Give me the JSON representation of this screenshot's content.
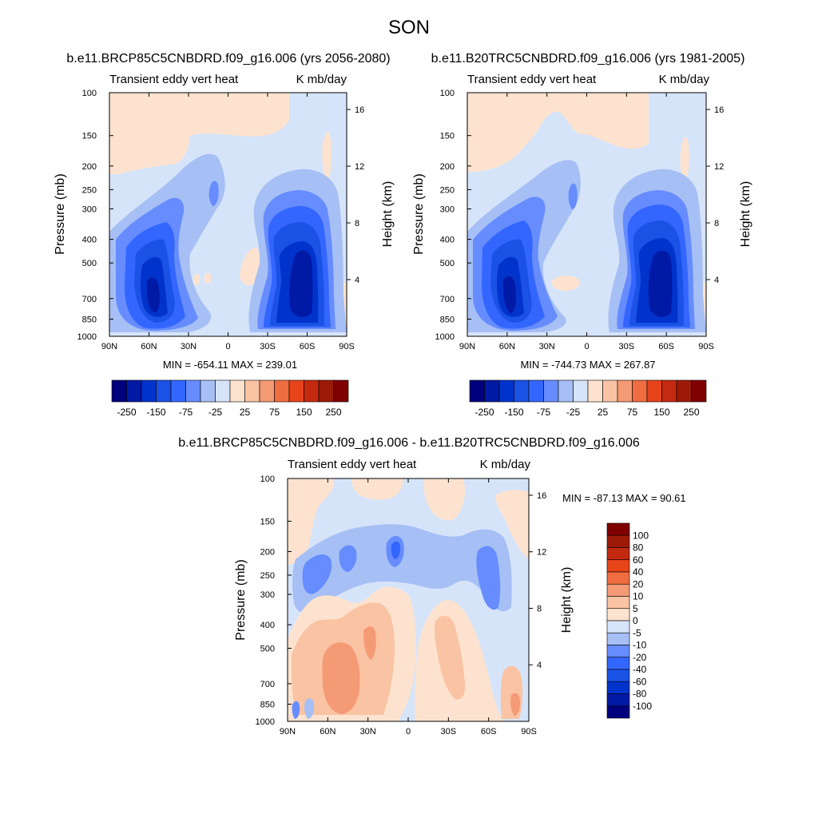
{
  "figure_title": "SON",
  "chart_data": [
    {
      "type": "heatmap",
      "panel": "case",
      "title": "b.e11.BRCP85C5CNBDRD.f09_g16.006 (yrs 2056-2080)",
      "left_label": "Transient eddy vert heat",
      "right_label": "K mb/day",
      "xlabel": "",
      "ylabel": "Pressure (mb)",
      "ylabel_right": "Height (km)",
      "x_ticks": [
        "90N",
        "60N",
        "30N",
        "0",
        "30S",
        "60S",
        "90S"
      ],
      "x_range": [
        90,
        -90
      ],
      "y_ticks": [
        "100",
        "150",
        "200",
        "250",
        "300",
        "400",
        "500",
        "700",
        "850",
        "1000"
      ],
      "y_range": [
        1000,
        100
      ],
      "y_scale": "log",
      "height_ticks": [
        "4",
        "8",
        "12",
        "16"
      ],
      "min": -654.11,
      "max": 239.01,
      "stats_text": "MIN = -654.11  MAX = 239.01",
      "colorbar_labels": [
        "-250",
        "-150",
        "-75",
        "-25",
        "25",
        "75",
        "150",
        "250"
      ]
    },
    {
      "type": "heatmap",
      "panel": "control",
      "title": "b.e11.B20TRC5CNBDRD.f09_g16.006 (yrs 1981-2005)",
      "left_label": "Transient eddy vert heat",
      "right_label": "K mb/day",
      "xlabel": "",
      "ylabel": "Pressure (mb)",
      "ylabel_right": "Height (km)",
      "x_ticks": [
        "90N",
        "60N",
        "30N",
        "0",
        "30S",
        "60S",
        "90S"
      ],
      "x_range": [
        90,
        -90
      ],
      "y_ticks": [
        "100",
        "150",
        "200",
        "250",
        "300",
        "400",
        "500",
        "700",
        "850",
        "1000"
      ],
      "y_range": [
        1000,
        100
      ],
      "y_scale": "log",
      "height_ticks": [
        "4",
        "8",
        "12",
        "16"
      ],
      "min": -744.73,
      "max": 267.87,
      "stats_text": "MIN = -744.73  MAX = 267.87",
      "colorbar_labels": [
        "-250",
        "-150",
        "-75",
        "-25",
        "25",
        "75",
        "150",
        "250"
      ]
    },
    {
      "type": "heatmap",
      "panel": "difference",
      "title": "b.e11.BRCP85C5CNBDRD.f09_g16.006 - b.e11.B20TRC5CNBDRD.f09_g16.006",
      "left_label": "Transient eddy vert heat",
      "right_label": "K mb/day",
      "xlabel": "",
      "ylabel": "Pressure (mb)",
      "ylabel_right": "Height (km)",
      "x_ticks": [
        "90N",
        "60N",
        "30N",
        "0",
        "30S",
        "60S",
        "90S"
      ],
      "x_range": [
        90,
        -90
      ],
      "y_ticks": [
        "100",
        "150",
        "200",
        "250",
        "300",
        "400",
        "500",
        "700",
        "850",
        "1000"
      ],
      "y_range": [
        1000,
        100
      ],
      "y_scale": "log",
      "height_ticks": [
        "4",
        "8",
        "12",
        "16"
      ],
      "min": -87.13,
      "max": 90.61,
      "stats_text": "MIN = -87.13  MAX =  90.61",
      "colorbar_labels": [
        "100",
        "80",
        "60",
        "40",
        "20",
        "10",
        "5",
        "0",
        "-5",
        "-10",
        "-20",
        "-40",
        "-60",
        "-80",
        "-100"
      ]
    }
  ],
  "colors": {
    "diverging_16": [
      "#00007f",
      "#001aa5",
      "#0033cc",
      "#1a52e6",
      "#3366ff",
      "#668cff",
      "#a6bff5",
      "#d6e4fa",
      "#fde3cf",
      "#fac3a3",
      "#f49a75",
      "#f06c41",
      "#e8441a",
      "#c42a0f",
      "#9e1a08",
      "#7f0000"
    ],
    "frame": "#000000",
    "background": "#ffffff"
  }
}
